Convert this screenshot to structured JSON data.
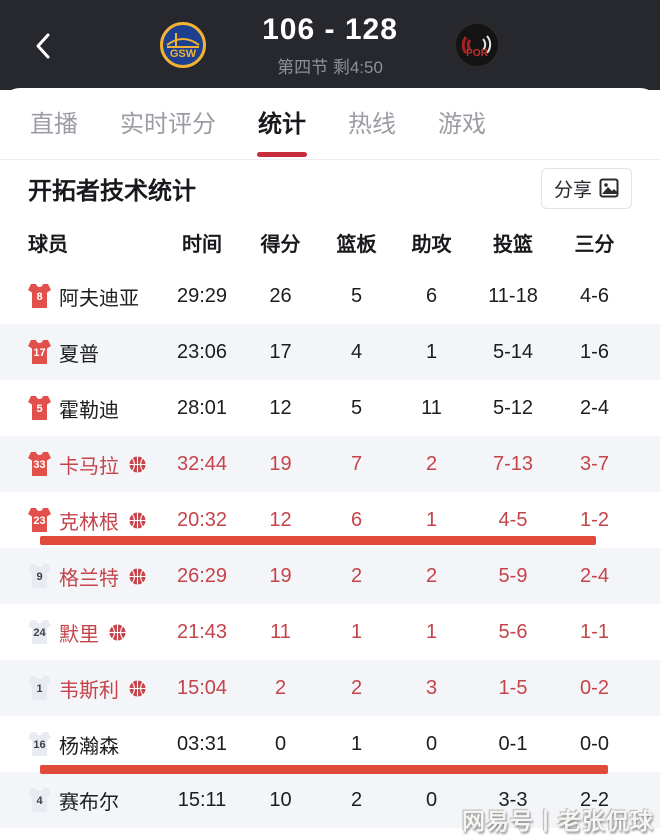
{
  "topbar": {
    "back_icon": "chevron-left",
    "home_team_abbr": "GSW",
    "away_team_abbr": "POR",
    "score": "106 - 128",
    "status": "第四节 剩4:50"
  },
  "tabs": [
    {
      "label": "直播",
      "active": false
    },
    {
      "label": "实时评分",
      "active": false
    },
    {
      "label": "统计",
      "active": true
    },
    {
      "label": "热线",
      "active": false
    },
    {
      "label": "游戏",
      "active": false
    }
  ],
  "section": {
    "title": "开拓者技术统计",
    "share_label": "分享"
  },
  "table": {
    "headers": [
      "球员",
      "时间",
      "得分",
      "篮板",
      "助攻",
      "投篮",
      "三分"
    ],
    "rows": [
      {
        "num": "8",
        "name": "阿夫迪亚",
        "jersey": "red",
        "on_court": false,
        "stats": [
          "29:29",
          "26",
          "5",
          "6",
          "11-18",
          "4-6"
        ]
      },
      {
        "num": "17",
        "name": "夏普",
        "jersey": "red",
        "on_court": false,
        "stats": [
          "23:06",
          "17",
          "4",
          "1",
          "5-14",
          "1-6"
        ]
      },
      {
        "num": "5",
        "name": "霍勒迪",
        "jersey": "red",
        "on_court": false,
        "stats": [
          "28:01",
          "12",
          "5",
          "11",
          "5-12",
          "2-4"
        ]
      },
      {
        "num": "33",
        "name": "卡马拉",
        "jersey": "red",
        "on_court": true,
        "stats": [
          "32:44",
          "19",
          "7",
          "2",
          "7-13",
          "3-7"
        ]
      },
      {
        "num": "23",
        "name": "克林根",
        "jersey": "red",
        "on_court": true,
        "stats": [
          "20:32",
          "12",
          "6",
          "1",
          "4-5",
          "1-2"
        ]
      },
      {
        "num": "9",
        "name": "格兰特",
        "jersey": "gray",
        "on_court": true,
        "stats": [
          "26:29",
          "19",
          "2",
          "2",
          "5-9",
          "2-4"
        ]
      },
      {
        "num": "24",
        "name": "默里",
        "jersey": "gray",
        "on_court": true,
        "stats": [
          "21:43",
          "11",
          "1",
          "1",
          "5-6",
          "1-1"
        ]
      },
      {
        "num": "1",
        "name": "韦斯利",
        "jersey": "gray",
        "on_court": true,
        "stats": [
          "15:04",
          "2",
          "2",
          "3",
          "1-5",
          "0-2"
        ]
      },
      {
        "num": "16",
        "name": "杨瀚森",
        "jersey": "gray",
        "on_court": false,
        "stats": [
          "03:31",
          "0",
          "1",
          "0",
          "0-1",
          "0-0"
        ]
      },
      {
        "num": "4",
        "name": "赛布尔",
        "jersey": "gray",
        "on_court": false,
        "stats": [
          "15:11",
          "10",
          "2",
          "0",
          "3-3",
          "2-2"
        ]
      }
    ]
  },
  "watermark": "网易号丨老张侃球",
  "colors": {
    "topbar_bg": "#26282d",
    "accent_red": "#c62c3a",
    "hot_text_red": "#c5434a",
    "highlight_bar_red": "#e14b3c",
    "alt_row_bg": "#f4f5f8",
    "jersey_red": "#e2504c",
    "jersey_gray": "#e8ebf2"
  }
}
